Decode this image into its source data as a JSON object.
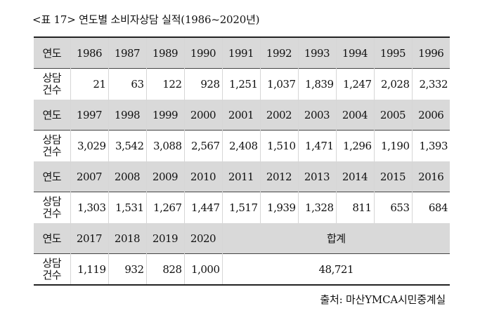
{
  "caption": "<표 17> 연도별 소비자상담 실적(1986~2020년)",
  "labels": {
    "year": "연도",
    "count_line1": "상담",
    "count_line2": "건수",
    "total": "합계"
  },
  "groups": [
    {
      "years": [
        "1986",
        "1987",
        "1989",
        "1990",
        "1991",
        "1992",
        "1993",
        "1994",
        "1995",
        "1996"
      ],
      "counts": [
        "21",
        "63",
        "122",
        "928",
        "1,251",
        "1,037",
        "1,839",
        "1,247",
        "2,028",
        "2,332"
      ]
    },
    {
      "years": [
        "1997",
        "1998",
        "1999",
        "2000",
        "2001",
        "2002",
        "2003",
        "2004",
        "2005",
        "2006"
      ],
      "counts": [
        "3,029",
        "3,542",
        "3,088",
        "2,567",
        "2,408",
        "1,510",
        "1,471",
        "1,296",
        "1,190",
        "1,393"
      ]
    },
    {
      "years": [
        "2007",
        "2008",
        "2009",
        "2010",
        "2011",
        "2012",
        "2013",
        "2014",
        "2015",
        "2016"
      ],
      "counts": [
        "1,303",
        "1,531",
        "1,267",
        "1,447",
        "1,517",
        "1,939",
        "1,328",
        "811",
        "653",
        "684"
      ]
    },
    {
      "years": [
        "2017",
        "2018",
        "2019",
        "2020"
      ],
      "counts": [
        "1,119",
        "932",
        "828",
        "1,000"
      ]
    }
  ],
  "total_value": "48,721",
  "source": "출처: 마산YMCA시민중계실"
}
